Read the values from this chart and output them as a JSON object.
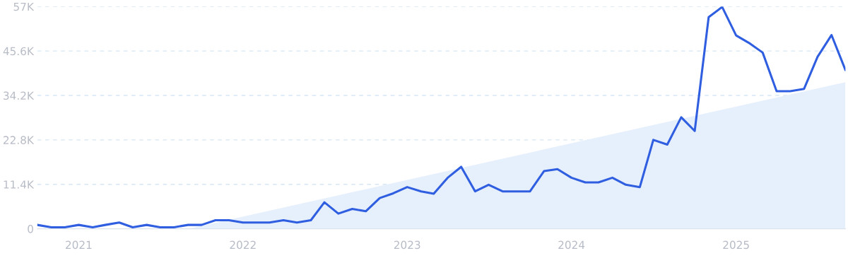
{
  "chart_data": {
    "type": "line",
    "x": [
      "2020-10",
      "2020-11",
      "2020-12",
      "2021-01",
      "2021-02",
      "2021-03",
      "2021-04",
      "2021-05",
      "2021-06",
      "2021-07",
      "2021-08",
      "2021-09",
      "2021-10",
      "2021-11",
      "2021-12",
      "2022-01",
      "2022-02",
      "2022-03",
      "2022-04",
      "2022-05",
      "2022-06",
      "2022-07",
      "2022-08",
      "2022-09",
      "2022-10",
      "2022-11",
      "2022-12",
      "2023-01",
      "2023-02",
      "2023-03",
      "2023-04",
      "2023-05",
      "2023-06",
      "2023-07",
      "2023-08",
      "2023-09",
      "2023-10",
      "2023-11",
      "2023-12",
      "2024-01",
      "2024-02",
      "2024-03",
      "2024-04",
      "2024-05",
      "2024-06",
      "2024-07",
      "2024-08",
      "2024-09",
      "2024-10",
      "2024-11",
      "2024-12",
      "2025-01",
      "2025-02",
      "2025-03",
      "2025-04",
      "2025-05",
      "2025-06",
      "2025-07",
      "2025-08",
      "2025-09"
    ],
    "series": [
      {
        "type": "area",
        "color": "#e6effc",
        "x": [
          "2021-09",
          "2025-09"
        ],
        "values": [
          0,
          37600
        ]
      },
      {
        "color": "#2f5fe0",
        "values": [
          1000,
          400,
          400,
          1000,
          400,
          1000,
          1600,
          400,
          1000,
          400,
          400,
          1000,
          1000,
          2200,
          2200,
          1600,
          1600,
          1600,
          2200,
          1600,
          2200,
          6800,
          3900,
          5100,
          4500,
          7900,
          9100,
          10700,
          9600,
          9000,
          13100,
          15900,
          9600,
          11300,
          9600,
          9600,
          9600,
          14800,
          15300,
          13100,
          11900,
          11900,
          13100,
          11300,
          10700,
          22800,
          21600,
          28600,
          25100,
          54300,
          56900,
          49600,
          47500,
          45200,
          35300,
          35300,
          35900,
          44100,
          49700,
          40700
        ]
      }
    ],
    "xlim": [
      "2020-10",
      "2025-09"
    ],
    "xticks": [
      {
        "value": "2021-01",
        "label": "2021"
      },
      {
        "value": "2022-01",
        "label": "2022"
      },
      {
        "value": "2023-01",
        "label": "2023"
      },
      {
        "value": "2024-01",
        "label": "2024"
      },
      {
        "value": "2025-01",
        "label": "2025"
      }
    ],
    "ylim": [
      0,
      57000
    ],
    "yticks": [
      {
        "value": 0,
        "label": "0"
      },
      {
        "value": 11400,
        "label": "11.4K"
      },
      {
        "value": 22800,
        "label": "22.8K"
      },
      {
        "value": 34200,
        "label": "34.2K"
      },
      {
        "value": 45600,
        "label": "45.6K"
      },
      {
        "value": 57000,
        "label": "57K"
      }
    ],
    "grid": "y",
    "line_style": "solid",
    "marker": "none"
  }
}
